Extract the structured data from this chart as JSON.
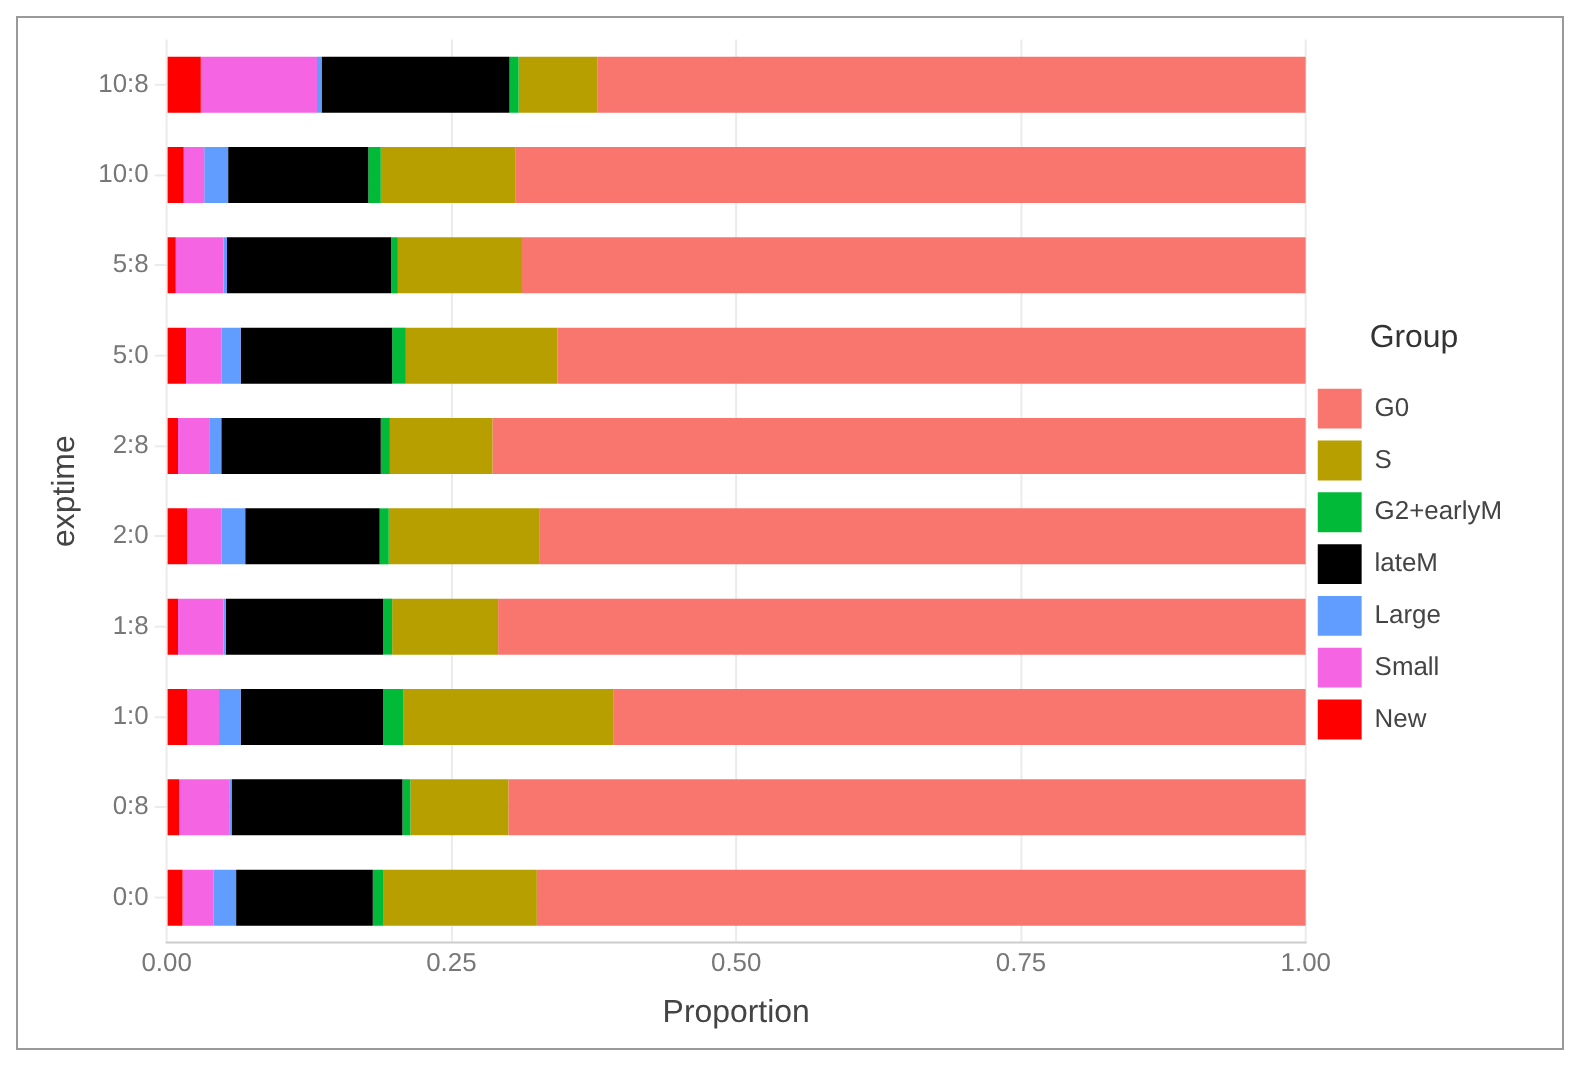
{
  "chart_data": {
    "type": "bar",
    "orientation": "horizontal",
    "stacked": true,
    "xlabel": "Proportion",
    "ylabel": "exptime",
    "legend_title": "Group",
    "legend": "right",
    "grid": true,
    "categories": [
      "10:8",
      "10:0",
      "5:8",
      "5:0",
      "2:8",
      "2:0",
      "1:8",
      "1:0",
      "0:8",
      "0:0"
    ],
    "xlim": [
      0,
      1
    ],
    "xticks": [
      {
        "value": 0,
        "label": "0.00"
      },
      {
        "value": 0.25,
        "label": "0.25"
      },
      {
        "value": 0.5,
        "label": "0.50"
      },
      {
        "value": 0.75,
        "label": "0.75"
      },
      {
        "value": 1,
        "label": "1.00"
      }
    ],
    "series": [
      {
        "name": "New",
        "color": "#ff0000",
        "values": [
          0.03,
          0.015,
          0.008,
          0.017,
          0.01,
          0.018,
          0.01,
          0.018,
          0.011,
          0.014
        ]
      },
      {
        "name": "Small",
        "color": "#f564e3",
        "values": [
          0.102,
          0.018,
          0.042,
          0.031,
          0.028,
          0.03,
          0.04,
          0.028,
          0.044,
          0.027
        ]
      },
      {
        "name": "Large",
        "color": "#619cff",
        "values": [
          0.004,
          0.021,
          0.003,
          0.017,
          0.01,
          0.021,
          0.002,
          0.019,
          0.002,
          0.02
        ]
      },
      {
        "name": "lateM",
        "color": "#000000",
        "values": [
          0.165,
          0.123,
          0.144,
          0.133,
          0.14,
          0.118,
          0.138,
          0.125,
          0.15,
          0.12
        ]
      },
      {
        "name": "G2+earlyM",
        "color": "#00ba38",
        "values": [
          0.008,
          0.011,
          0.006,
          0.012,
          0.008,
          0.008,
          0.008,
          0.018,
          0.007,
          0.009
        ]
      },
      {
        "name": "S",
        "color": "#b79f00",
        "values": [
          0.069,
          0.118,
          0.109,
          0.133,
          0.09,
          0.132,
          0.093,
          0.184,
          0.086,
          0.135
        ]
      },
      {
        "name": "G0",
        "color": "#f8766d",
        "values": [
          0.622,
          0.694,
          0.688,
          0.657,
          0.714,
          0.673,
          0.709,
          0.608,
          0.7,
          0.675
        ]
      }
    ]
  }
}
